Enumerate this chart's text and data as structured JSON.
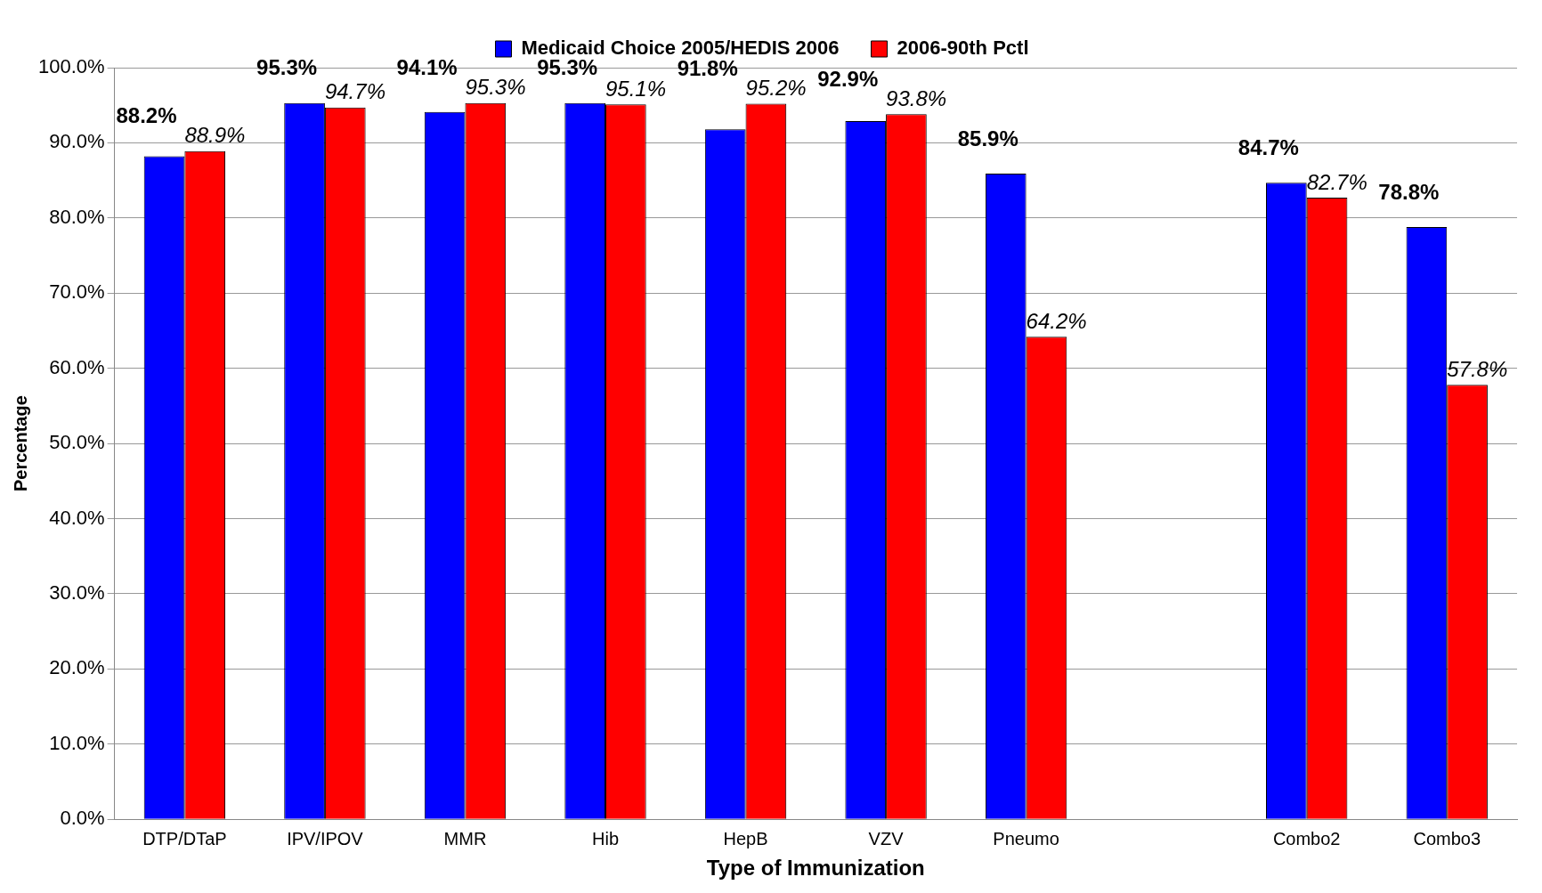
{
  "chart_data": {
    "type": "bar",
    "xlabel": "Type of Immunization",
    "ylabel": "Percentage",
    "categories": [
      "DTP/DTaP",
      "IPV/IPOV",
      "MMR",
      "Hib",
      "HepB",
      "VZV",
      "Pneumo",
      null,
      "Combo2",
      "Combo3"
    ],
    "series": [
      {
        "name": "Medicaid Choice 2005/HEDIS 2006",
        "color": "#0000ff",
        "values": [
          88.2,
          95.3,
          94.1,
          95.3,
          91.8,
          92.9,
          85.9,
          null,
          84.7,
          78.8
        ],
        "value_labels": [
          "88.2%",
          "95.3%",
          "94.1%",
          "95.3%",
          "91.8%",
          "92.9%",
          "85.9%",
          null,
          "84.7%",
          "78.8%"
        ]
      },
      {
        "name": "2006-90th Pctl",
        "color": "#ff0000",
        "values": [
          88.9,
          94.7,
          95.3,
          95.1,
          95.2,
          93.8,
          64.2,
          null,
          82.7,
          57.8
        ],
        "value_labels": [
          "88.9%",
          "94.7%",
          "95.3%",
          "95.1%",
          "95.2%",
          "93.8%",
          "64.2%",
          null,
          "82.7%",
          "57.8%"
        ]
      }
    ],
    "ylim": [
      0,
      100
    ],
    "yticks": [
      {
        "value": 0,
        "label": "0.0%"
      },
      {
        "value": 10,
        "label": "10.0%"
      },
      {
        "value": 20,
        "label": "20.0%"
      },
      {
        "value": 30,
        "label": "30.0%"
      },
      {
        "value": 40,
        "label": "40.0%"
      },
      {
        "value": 50,
        "label": "50.0%"
      },
      {
        "value": 60,
        "label": "60.0%"
      },
      {
        "value": 70,
        "label": "70.0%"
      },
      {
        "value": 80,
        "label": "80.0%"
      },
      {
        "value": 90,
        "label": "90.0%"
      },
      {
        "value": 100,
        "label": "100.0%"
      }
    ],
    "grid": "y",
    "legend": "top"
  }
}
